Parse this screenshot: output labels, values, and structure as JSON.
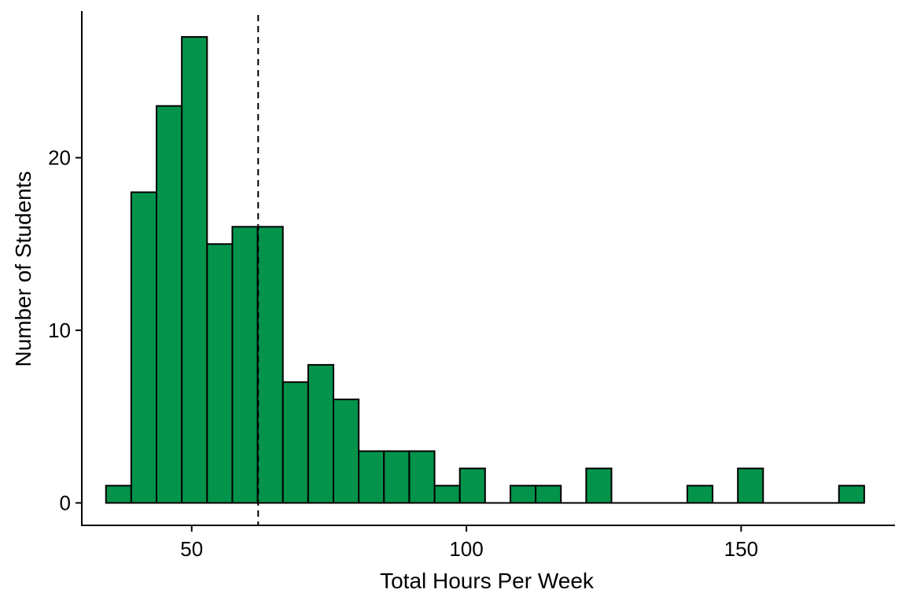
{
  "chart_data": {
    "type": "bar",
    "subtype": "histogram",
    "xlabel": "Total Hours Per Week",
    "ylabel": "Number of Students",
    "xlim": [
      30,
      178
    ],
    "ylim": [
      -1.3,
      28.5
    ],
    "x_ticks": [
      50,
      100,
      150
    ],
    "y_ticks": [
      0,
      10,
      20
    ],
    "bin_width": 4.6,
    "bins": [
      {
        "x": 36.7,
        "count": 1
      },
      {
        "x": 41.3,
        "count": 18
      },
      {
        "x": 45.9,
        "count": 23
      },
      {
        "x": 50.5,
        "count": 27
      },
      {
        "x": 55.1,
        "count": 15
      },
      {
        "x": 59.7,
        "count": 16
      },
      {
        "x": 64.3,
        "count": 16
      },
      {
        "x": 68.9,
        "count": 7
      },
      {
        "x": 73.5,
        "count": 8
      },
      {
        "x": 78.1,
        "count": 6
      },
      {
        "x": 82.7,
        "count": 3
      },
      {
        "x": 87.3,
        "count": 3
      },
      {
        "x": 91.9,
        "count": 3
      },
      {
        "x": 96.5,
        "count": 1
      },
      {
        "x": 101.1,
        "count": 2
      },
      {
        "x": 105.7,
        "count": 0
      },
      {
        "x": 110.3,
        "count": 1
      },
      {
        "x": 114.9,
        "count": 1
      },
      {
        "x": 119.5,
        "count": 0
      },
      {
        "x": 124.1,
        "count": 2
      },
      {
        "x": 128.7,
        "count": 0
      },
      {
        "x": 133.3,
        "count": 0
      },
      {
        "x": 137.9,
        "count": 0
      },
      {
        "x": 142.5,
        "count": 1
      },
      {
        "x": 147.1,
        "count": 0
      },
      {
        "x": 151.7,
        "count": 2
      },
      {
        "x": 156.3,
        "count": 0
      },
      {
        "x": 160.9,
        "count": 0
      },
      {
        "x": 165.5,
        "count": 0
      },
      {
        "x": 170.1,
        "count": 1
      }
    ],
    "reference_line": {
      "x": 62.1,
      "style": "dashed"
    },
    "bar_color": "#03934B",
    "bar_outline": "#000000",
    "grid": false
  }
}
